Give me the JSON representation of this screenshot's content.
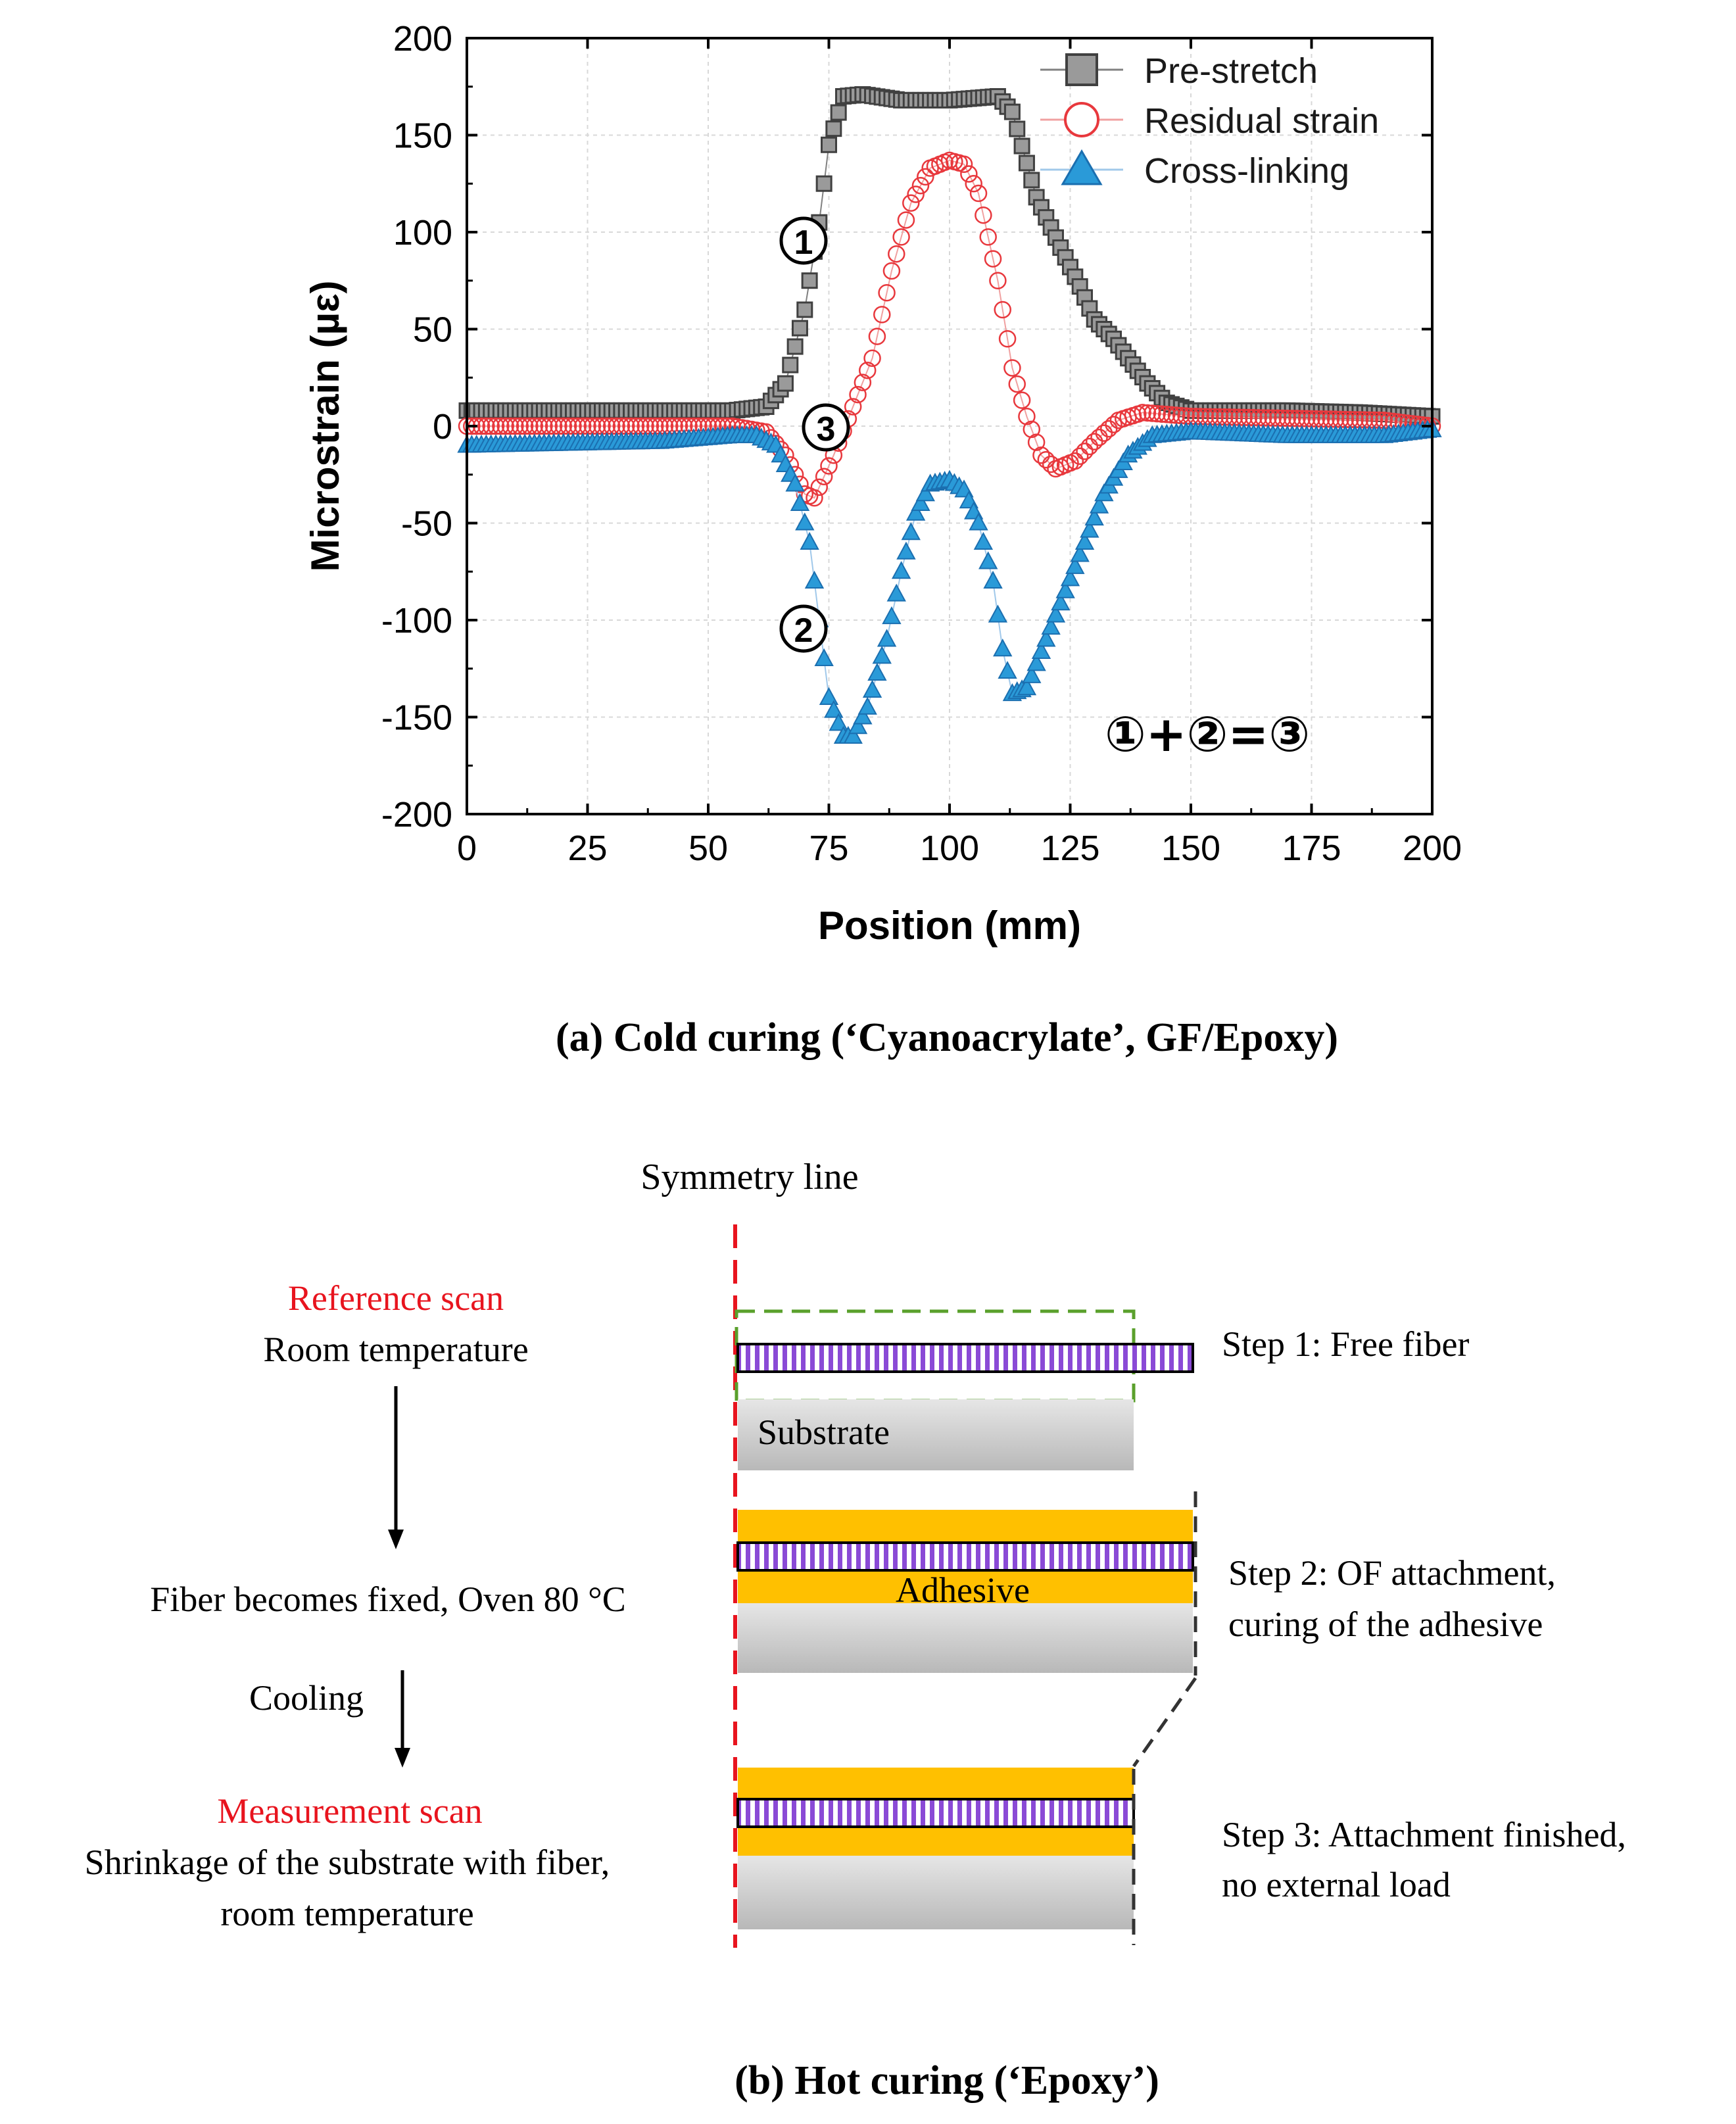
{
  "chart_data": {
    "type": "scatter",
    "xlabel": "Position (mm)",
    "ylabel": "Microstrain (µε)",
    "xlim": [
      0,
      200
    ],
    "ylim": [
      -200,
      200
    ],
    "xticks": [
      "0",
      "25",
      "50",
      "75",
      "100",
      "125",
      "150",
      "175",
      "200"
    ],
    "yticks": [
      "200",
      "150",
      "100",
      "50",
      "0",
      "-50",
      "-100",
      "-150",
      "-200"
    ],
    "grid": true,
    "legend_position": "top-right",
    "series": [
      {
        "name": "Pre-stretch",
        "marker": "square",
        "color": "#404040",
        "points": [
          [
            0,
            8
          ],
          [
            55,
            8
          ],
          [
            62,
            10
          ],
          [
            66,
            22
          ],
          [
            70,
            60
          ],
          [
            73,
            105
          ],
          [
            75,
            145
          ],
          [
            78,
            170
          ],
          [
            82,
            171
          ],
          [
            90,
            168
          ],
          [
            100,
            168
          ],
          [
            110,
            170
          ],
          [
            113,
            162
          ],
          [
            118,
            118
          ],
          [
            123,
            92
          ],
          [
            127,
            72
          ],
          [
            130,
            55
          ],
          [
            134,
            45
          ],
          [
            137,
            35
          ],
          [
            141,
            22
          ],
          [
            145,
            12
          ],
          [
            150,
            8
          ],
          [
            170,
            8
          ],
          [
            185,
            7
          ],
          [
            200,
            5
          ]
        ]
      },
      {
        "name": "Residual strain",
        "marker": "circle",
        "color": "#e8383d",
        "points": [
          [
            0,
            0
          ],
          [
            55,
            0
          ],
          [
            62,
            -3
          ],
          [
            66,
            -15
          ],
          [
            70,
            -35
          ],
          [
            72,
            -37
          ],
          [
            76,
            -15
          ],
          [
            80,
            10
          ],
          [
            84,
            35
          ],
          [
            88,
            80
          ],
          [
            92,
            115
          ],
          [
            96,
            133
          ],
          [
            100,
            137
          ],
          [
            103,
            135
          ],
          [
            106,
            120
          ],
          [
            110,
            75
          ],
          [
            113,
            30
          ],
          [
            116,
            5
          ],
          [
            119,
            -15
          ],
          [
            122,
            -22
          ],
          [
            126,
            -18
          ],
          [
            130,
            -8
          ],
          [
            135,
            3
          ],
          [
            140,
            7
          ],
          [
            150,
            5
          ],
          [
            170,
            4
          ],
          [
            190,
            3
          ],
          [
            200,
            0
          ]
        ]
      },
      {
        "name": "Cross-linking",
        "marker": "triangle",
        "color": "#1b8ad6",
        "points": [
          [
            0,
            -10
          ],
          [
            40,
            -8
          ],
          [
            55,
            -5
          ],
          [
            60,
            -5
          ],
          [
            64,
            -10
          ],
          [
            68,
            -30
          ],
          [
            71,
            -60
          ],
          [
            73,
            -100
          ],
          [
            75,
            -140
          ],
          [
            78,
            -160
          ],
          [
            80,
            -160
          ],
          [
            83,
            -145
          ],
          [
            87,
            -110
          ],
          [
            90,
            -75
          ],
          [
            93,
            -45
          ],
          [
            96,
            -30
          ],
          [
            100,
            -28
          ],
          [
            103,
            -33
          ],
          [
            106,
            -50
          ],
          [
            109,
            -80
          ],
          [
            111,
            -115
          ],
          [
            113,
            -138
          ],
          [
            116,
            -135
          ],
          [
            120,
            -110
          ],
          [
            124,
            -85
          ],
          [
            128,
            -60
          ],
          [
            132,
            -35
          ],
          [
            137,
            -15
          ],
          [
            142,
            -5
          ],
          [
            150,
            -3
          ],
          [
            170,
            -5
          ],
          [
            190,
            -5
          ],
          [
            200,
            -2
          ]
        ]
      }
    ],
    "annotations": {
      "c1": "①",
      "c2": "②",
      "c3": "③",
      "equation": "①+②=③"
    }
  },
  "panel_a_caption": "(a) Cold curing (‘Cyanoacrylate’, GF/Epoxy)",
  "panel_b": {
    "caption": "(b) Hot curing (‘Epoxy’)",
    "symmetry_line_label": "Symmetry line",
    "left": {
      "reference_scan": "Reference scan",
      "room_temperature": "Room temperature",
      "fiber_fixed": "Fiber becomes fixed, Oven 80 °C",
      "cooling": "Cooling",
      "measurement_scan": "Measurement scan",
      "shrinkage_line1": "Shrinkage of the substrate with fiber,",
      "shrinkage_line2": "room temperature"
    },
    "step1": {
      "label": "Step 1: Free fiber",
      "substrate": "Substrate"
    },
    "step2": {
      "label_line1": "Step 2: OF attachment,",
      "label_line2": "curing of the adhesive",
      "adhesive": "Adhesive"
    },
    "step3": {
      "label_line1": "Step 3: Attachment finished,",
      "label_line2": "no external load"
    },
    "colors": {
      "red": "#e8141e",
      "adhesive": "#ffc000",
      "fiber_stripe": "#8a4ad6",
      "substrate": "#c8c8c8",
      "dashed_box": "#5aa02c"
    }
  }
}
